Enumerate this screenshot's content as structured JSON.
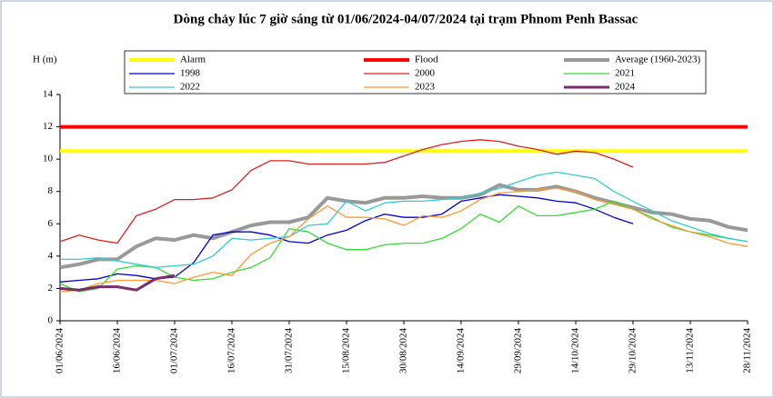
{
  "chart_data": {
    "type": "line",
    "title": "Dòng chảy lúc 7 giờ sáng từ 01/06/2024-04/07/2024 tại trạm Phnom Penh Bassac",
    "y_label": "H (m)",
    "x": [
      "01/06/2024",
      "06/06/2024",
      "11/06/2024",
      "16/06/2024",
      "21/06/2024",
      "26/06/2024",
      "01/07/2024",
      "06/07/2024",
      "11/07/2024",
      "16/07/2024",
      "21/07/2024",
      "26/07/2024",
      "31/07/2024",
      "05/08/2024",
      "10/08/2024",
      "15/08/2024",
      "20/08/2024",
      "25/08/2024",
      "30/08/2024",
      "04/09/2024",
      "09/09/2024",
      "14/09/2024",
      "19/09/2024",
      "24/09/2024",
      "29/09/2024",
      "04/10/2024",
      "09/10/2024",
      "14/10/2024",
      "19/10/2024",
      "24/10/2024",
      "29/10/2024",
      "03/11/2024",
      "08/11/2024",
      "13/11/2024",
      "18/11/2024",
      "23/11/2024",
      "28/11/2024"
    ],
    "xticks": [
      "01/06/2024",
      "16/06/2024",
      "01/07/2024",
      "16/07/2024",
      "31/07/2024",
      "15/08/2024",
      "30/08/2024",
      "14/09/2024",
      "29/09/2024",
      "14/10/2024",
      "29/10/2024",
      "13/11/2024",
      "28/11/2024"
    ],
    "ylim": [
      0,
      14
    ],
    "yticks": [
      0,
      2,
      4,
      6,
      8,
      10,
      12,
      14
    ],
    "grid": false,
    "series": [
      {
        "name": "Alarm",
        "color": "#ffff00",
        "width": 4,
        "values": [
          10.5,
          10.5,
          10.5,
          10.5,
          10.5,
          10.5,
          10.5,
          10.5,
          10.5,
          10.5,
          10.5,
          10.5,
          10.5,
          10.5,
          10.5,
          10.5,
          10.5,
          10.5,
          10.5,
          10.5,
          10.5,
          10.5,
          10.5,
          10.5,
          10.5,
          10.5,
          10.5,
          10.5,
          10.5,
          10.5,
          10.5,
          10.5,
          10.5,
          10.5,
          10.5,
          10.5,
          10.5
        ]
      },
      {
        "name": "Flood",
        "color": "#ff0000",
        "width": 4,
        "values": [
          12,
          12,
          12,
          12,
          12,
          12,
          12,
          12,
          12,
          12,
          12,
          12,
          12,
          12,
          12,
          12,
          12,
          12,
          12,
          12,
          12,
          12,
          12,
          12,
          12,
          12,
          12,
          12,
          12,
          12,
          12,
          12,
          12,
          12,
          12,
          12,
          12
        ]
      },
      {
        "name": "Average (1960-2023)",
        "color": "#999999",
        "width": 4,
        "values": [
          3.3,
          3.5,
          3.8,
          3.8,
          4.6,
          5.1,
          5.0,
          5.3,
          5.1,
          5.5,
          5.9,
          6.1,
          6.1,
          6.4,
          7.6,
          7.4,
          7.3,
          7.6,
          7.6,
          7.7,
          7.6,
          7.6,
          7.8,
          8.4,
          8.1,
          8.1,
          8.3,
          8.0,
          7.6,
          7.3,
          7.0,
          6.7,
          6.6,
          6.3,
          6.2,
          5.8,
          5.6
        ]
      },
      {
        "name": "1998",
        "color": "#0000cc",
        "width": 1.3,
        "values": [
          2.4,
          2.5,
          2.6,
          2.9,
          2.8,
          2.6,
          2.7,
          3.6,
          5.3,
          5.5,
          5.5,
          5.3,
          4.9,
          4.8,
          5.3,
          5.6,
          6.2,
          6.6,
          6.4,
          6.4,
          6.6,
          7.4,
          7.6,
          7.8,
          7.7,
          7.6,
          7.4,
          7.3,
          6.9,
          6.4,
          6.0,
          null,
          null,
          null,
          null,
          null,
          null
        ]
      },
      {
        "name": "2000",
        "color": "#dd1f1f",
        "width": 1.3,
        "values": [
          4.9,
          5.3,
          5.0,
          4.8,
          6.5,
          6.9,
          7.5,
          7.5,
          7.6,
          8.1,
          9.3,
          9.9,
          9.9,
          9.7,
          9.7,
          9.7,
          9.7,
          9.8,
          10.2,
          10.6,
          10.9,
          11.1,
          11.2,
          11.1,
          10.8,
          10.6,
          10.3,
          10.5,
          10.4,
          10.0,
          9.5,
          null,
          null,
          null,
          null,
          null,
          null
        ]
      },
      {
        "name": "2021",
        "color": "#33dd33",
        "width": 1.3,
        "values": [
          2.3,
          1.8,
          2.0,
          3.2,
          3.4,
          3.3,
          2.7,
          2.5,
          2.6,
          3.0,
          3.3,
          3.9,
          5.7,
          5.5,
          4.8,
          4.4,
          4.4,
          4.7,
          4.8,
          4.8,
          5.1,
          5.7,
          6.6,
          6.1,
          7.1,
          6.5,
          6.5,
          6.7,
          6.9,
          7.4,
          6.9,
          6.4,
          5.8,
          5.5,
          5.3,
          5.1,
          4.9
        ]
      },
      {
        "name": "2022",
        "color": "#33cccc",
        "width": 1.3,
        "values": [
          3.8,
          3.8,
          3.9,
          3.7,
          3.5,
          3.3,
          3.4,
          3.5,
          4.0,
          5.1,
          5.0,
          5.1,
          5.2,
          5.9,
          6.0,
          7.4,
          6.8,
          7.3,
          7.4,
          7.4,
          7.5,
          7.6,
          7.9,
          8.2,
          8.6,
          9.0,
          9.2,
          9.0,
          8.8,
          8.0,
          7.4,
          6.8,
          6.2,
          5.8,
          5.4,
          5.1,
          4.9
        ]
      },
      {
        "name": "2023",
        "color": "#ff9933",
        "width": 1.3,
        "values": [
          1.8,
          1.9,
          2.3,
          2.5,
          2.5,
          2.5,
          2.3,
          2.7,
          3.0,
          2.8,
          4.1,
          4.8,
          5.2,
          6.3,
          7.1,
          6.4,
          6.4,
          6.3,
          5.9,
          6.5,
          6.4,
          6.8,
          7.5,
          7.9,
          8.0,
          8.1,
          8.2,
          8.0,
          7.5,
          7.2,
          6.9,
          6.3,
          5.9,
          5.5,
          5.2,
          4.8,
          4.6
        ]
      },
      {
        "name": "2024",
        "color": "#7b2c6b",
        "width": 3,
        "values": [
          2.0,
          1.9,
          2.1,
          2.1,
          1.9,
          2.6,
          2.8,
          null,
          null,
          null,
          null,
          null,
          null,
          null,
          null,
          null,
          null,
          null,
          null,
          null,
          null,
          null,
          null,
          null,
          null,
          null,
          null,
          null,
          null,
          null,
          null,
          null,
          null,
          null,
          null,
          null,
          null
        ]
      }
    ]
  }
}
